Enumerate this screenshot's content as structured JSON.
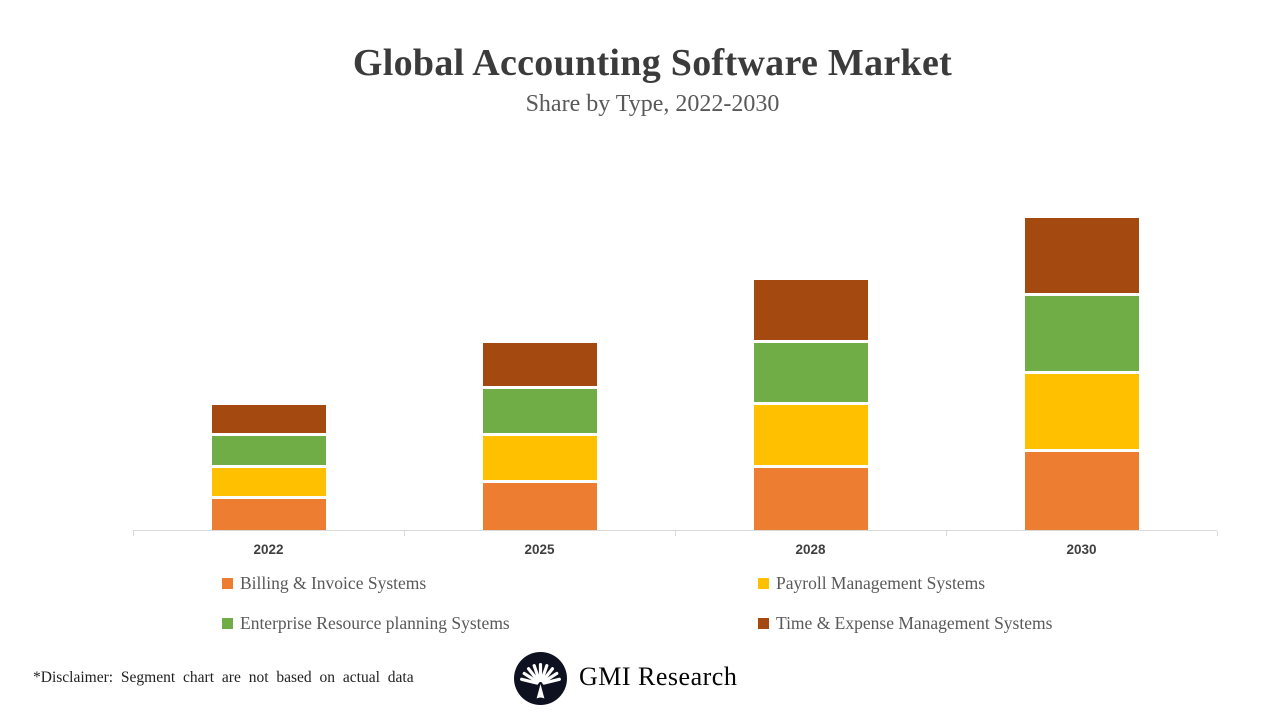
{
  "header": {
    "title": "Global Accounting Software Market",
    "subtitle": "Share by Type, 2022-2030"
  },
  "chart_data": {
    "type": "bar",
    "stacked": true,
    "title": "Global Accounting Software Market",
    "subtitle": "Share by Type, 2022-2030",
    "categories": [
      "2022",
      "2025",
      "2028",
      "2030"
    ],
    "series": [
      {
        "name": "Billing & Invoice Systems",
        "color": "#ED7D31",
        "values": [
          25,
          37.5,
          50,
          62.5
        ]
      },
      {
        "name": "Payroll Management Systems",
        "color": "#FFC000",
        "values": [
          25,
          37.5,
          50,
          62.5
        ]
      },
      {
        "name": "Enterprise Resource planning Systems",
        "color": "#70AD47",
        "values": [
          25,
          37.5,
          50,
          62.5
        ]
      },
      {
        "name": "Time & Expense Management Systems",
        "color": "#A4490F",
        "values": [
          25,
          37.5,
          50,
          62.5
        ]
      }
    ],
    "stack_totals": [
      100,
      150,
      200,
      250
    ],
    "units": "relative share (illustrative - segments not based on actual data)",
    "ylim": [
      0,
      250
    ],
    "grid": false,
    "y_axis_visible": false,
    "legend_position": "bottom",
    "axis_color": "#d9d9d9",
    "separator_color": "#ffffff"
  },
  "footer": {
    "disclaimer": "*Disclaimer:  Segment chart are not based on actual data",
    "brand": "GMI Research",
    "logo_icon": "palm-fan-icon",
    "logo_color": "#0e1120"
  }
}
